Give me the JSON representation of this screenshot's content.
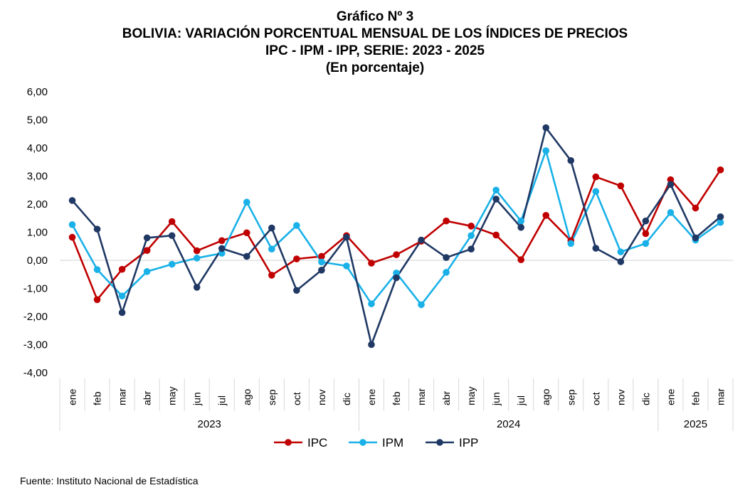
{
  "header": {
    "title": "Gráfico Nº 3",
    "subtitle1": "BOLIVIA: VARIACIÓN PORCENTUAL MENSUAL DE LOS ÍNDICES DE PRECIOS",
    "subtitle2": "IPC - IPM - IPP, SERIE: 2023 - 2025",
    "subtitle3": "(En porcentaje)"
  },
  "footer": {
    "source": "Fuente: Instituto Nacional de Estadística"
  },
  "chart_data": {
    "type": "line",
    "categories": [
      "ene",
      "feb",
      "mar",
      "abr",
      "may",
      "jun",
      "jul",
      "ago",
      "sep",
      "oct",
      "nov",
      "dic",
      "ene",
      "feb",
      "mar",
      "abr",
      "may",
      "jun",
      "jul",
      "ago",
      "sep",
      "oct",
      "nov",
      "dic",
      "ene",
      "feb",
      "mar"
    ],
    "year_groups": [
      {
        "label": "2023",
        "count": 12
      },
      {
        "label": "2024",
        "count": 12
      },
      {
        "label": "2025",
        "count": 3
      }
    ],
    "ylim": [
      -4,
      6
    ],
    "yticks": [
      "6,00",
      "5,00",
      "4,00",
      "3,00",
      "2,00",
      "1,00",
      "0,00",
      "-1,00",
      "-2,00",
      "-3,00",
      "-4,00"
    ],
    "ytick_values": [
      6,
      5,
      4,
      3,
      2,
      1,
      0,
      -1,
      -2,
      -3,
      -4
    ],
    "zero_line": true,
    "legend_position": "bottom-center",
    "series": [
      {
        "name": "IPC",
        "color": "#C00000",
        "values": [
          0.82,
          -1.4,
          -0.32,
          0.35,
          1.38,
          0.34,
          0.7,
          0.98,
          -0.53,
          0.05,
          0.14,
          0.88,
          -0.1,
          0.2,
          0.68,
          1.4,
          1.22,
          0.9,
          0.02,
          1.6,
          0.7,
          2.97,
          2.65,
          0.95,
          2.87,
          1.86,
          3.22
        ]
      },
      {
        "name": "IPM",
        "color": "#19B1E8",
        "values": [
          1.27,
          -0.33,
          -1.27,
          -0.4,
          -0.14,
          0.08,
          0.25,
          2.07,
          0.4,
          1.24,
          -0.06,
          -0.2,
          -1.55,
          -0.45,
          -1.58,
          -0.43,
          0.88,
          2.5,
          1.4,
          3.9,
          0.6,
          2.45,
          0.3,
          0.6,
          1.7,
          0.72,
          1.35
        ]
      },
      {
        "name": "IPP",
        "color": "#1F3864",
        "values": [
          2.13,
          1.11,
          -1.86,
          0.8,
          0.88,
          -0.96,
          0.42,
          0.14,
          1.15,
          -1.07,
          -0.35,
          0.82,
          -3.0,
          -0.62,
          0.72,
          0.1,
          0.4,
          2.18,
          1.17,
          4.72,
          3.55,
          0.43,
          -0.05,
          1.4,
          2.7,
          0.8,
          1.55
        ]
      }
    ]
  }
}
